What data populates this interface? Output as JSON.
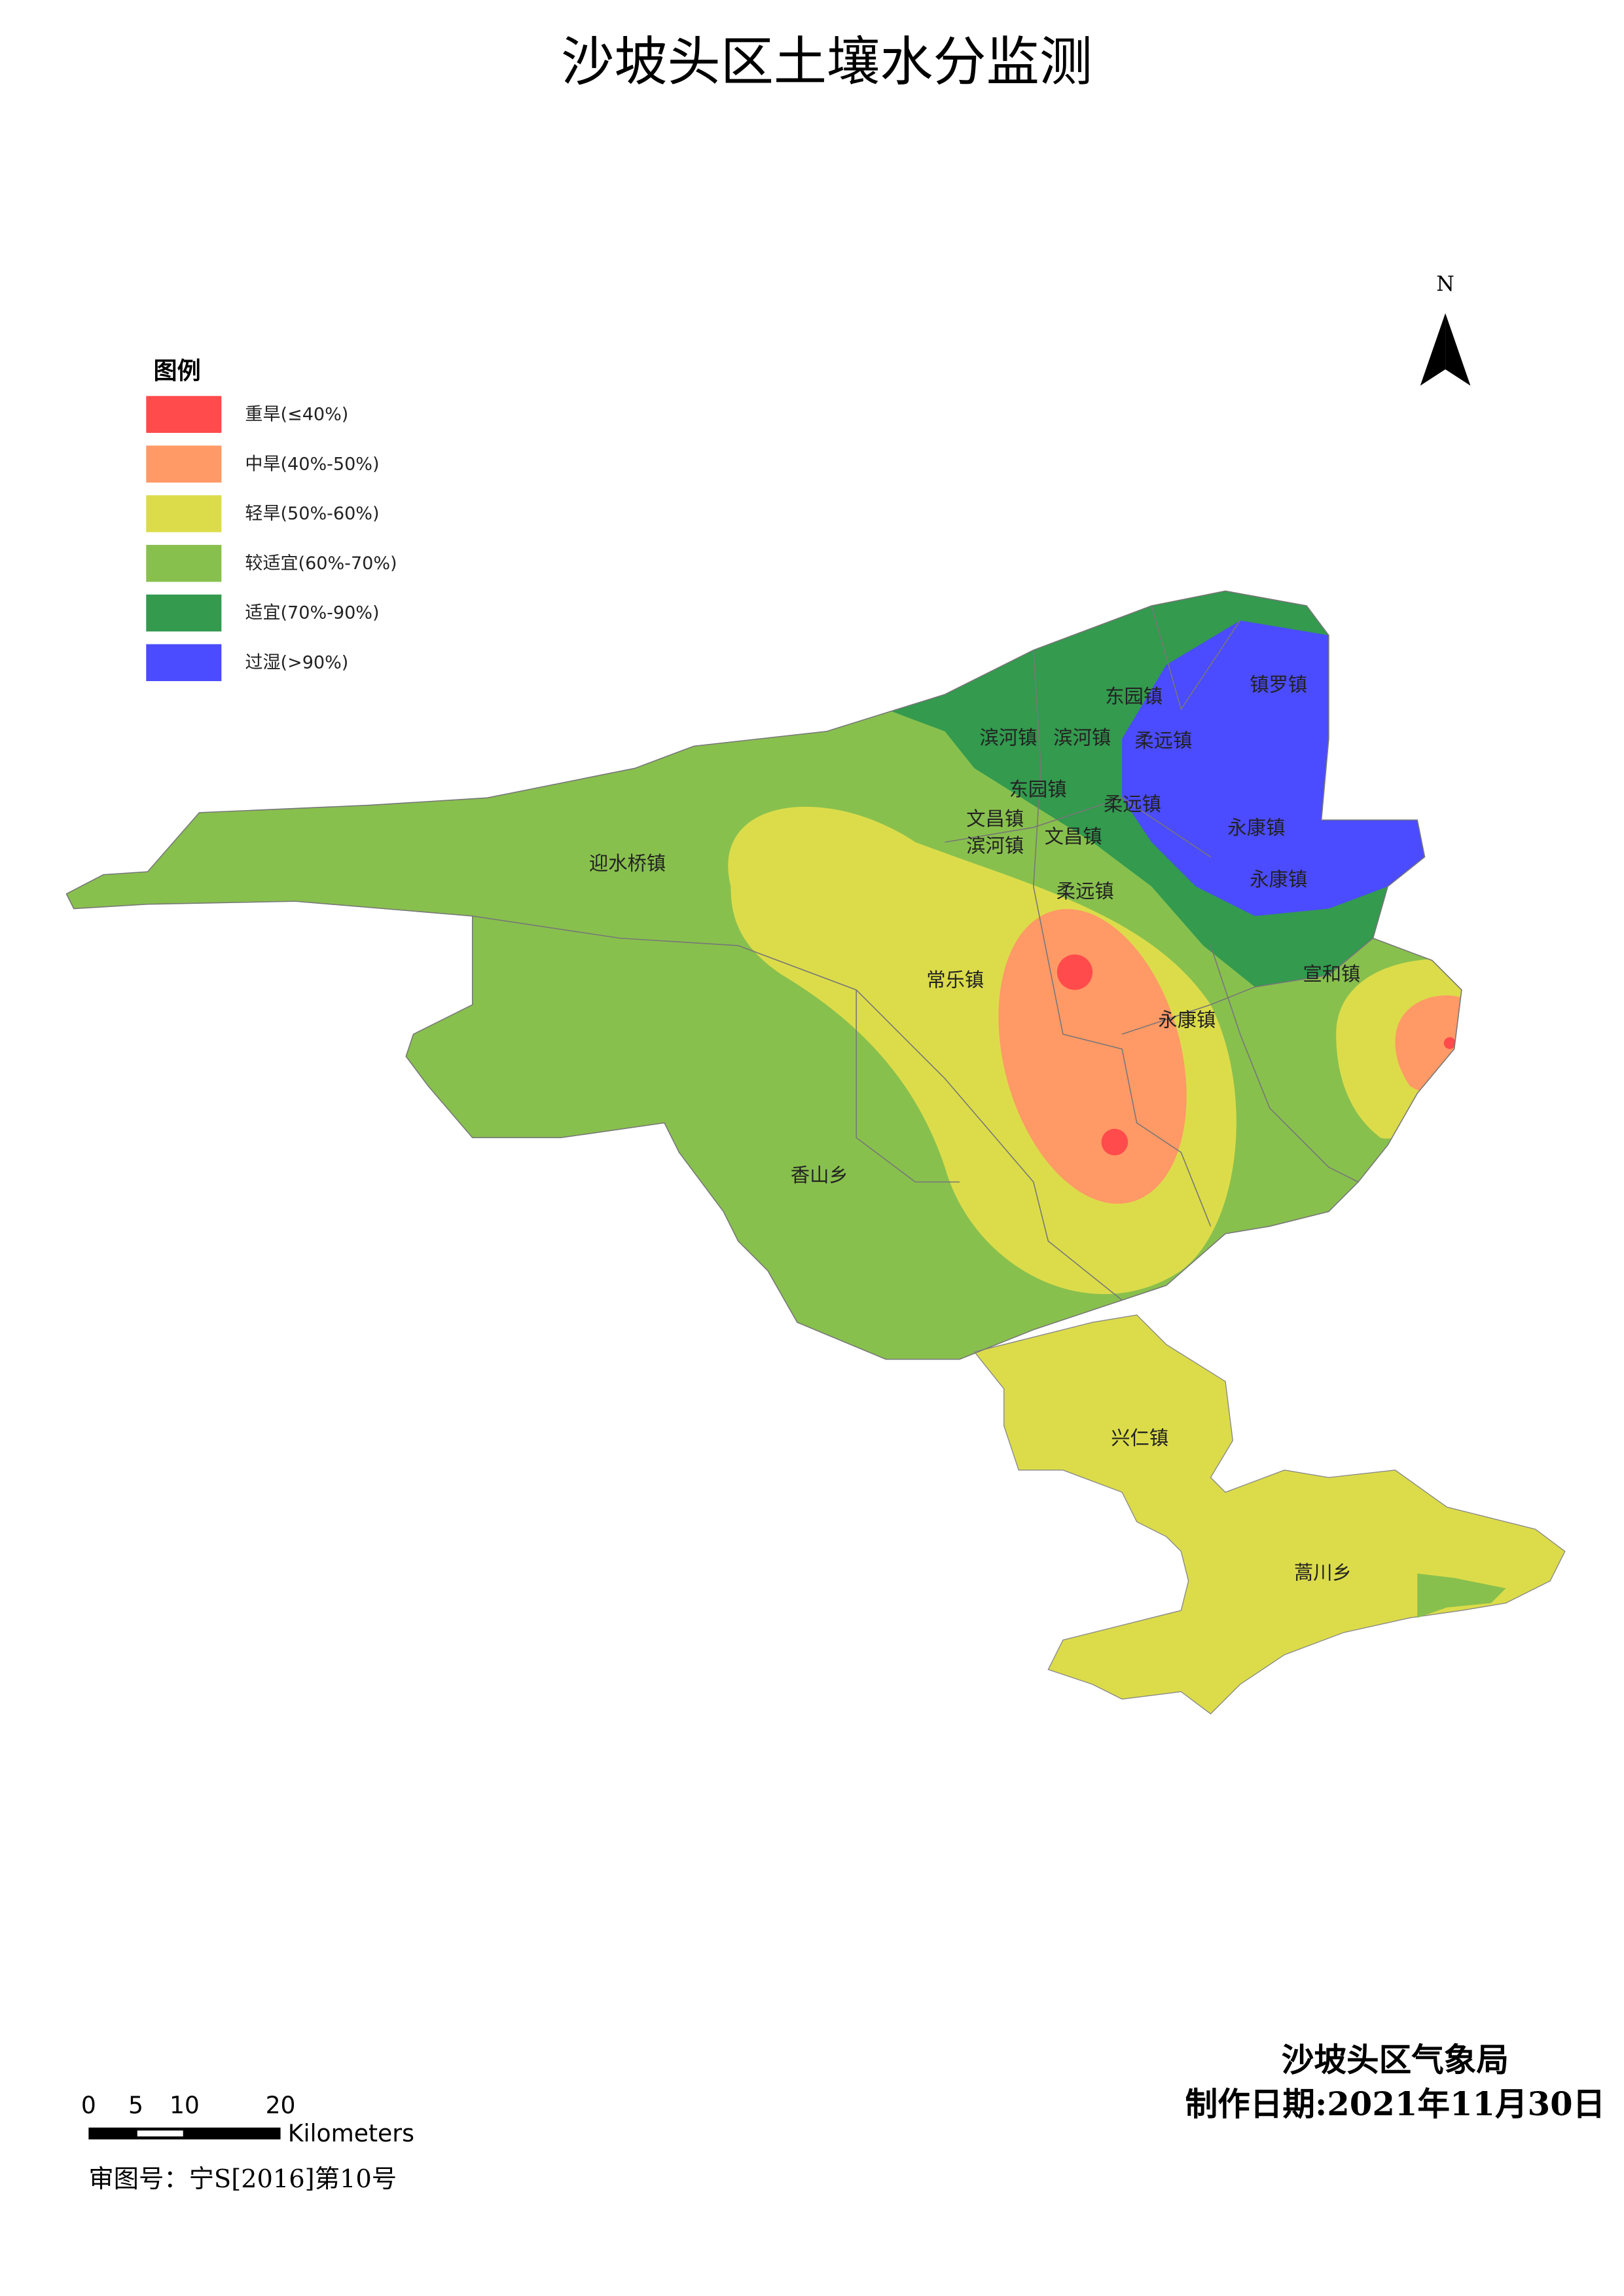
{
  "title": "沙坡头区土壤水分监测",
  "legend": {
    "title": "图例",
    "items": [
      {
        "label": "重旱(≤40%)",
        "color": "#ff4b4b"
      },
      {
        "label": "中旱(40%-50%)",
        "color": "#ff9966"
      },
      {
        "label": "轻旱(50%-60%)",
        "color": "#dcdc4a"
      },
      {
        "label": "较适宜(60%-70%)",
        "color": "#88c04e"
      },
      {
        "label": "适宜(70%-90%)",
        "color": "#339a4e"
      },
      {
        "label": "过湿(>90%)",
        "color": "#4b4bff"
      }
    ]
  },
  "north": "N",
  "places": [
    "东园镇",
    "镇罗镇",
    "滨河镇",
    "滨河镇",
    "柔远镇",
    "东园镇",
    "柔远镇",
    "文昌镇",
    "滨河镇",
    "文昌镇",
    "永康镇",
    "迎水桥镇",
    "永康镇",
    "柔远镇",
    "常乐镇",
    "宣和镇",
    "永康镇",
    "香山乡",
    "兴仁镇",
    "蒿川乡"
  ],
  "scalebar": {
    "ticks": [
      "0",
      "5",
      "10",
      "20"
    ],
    "unit": "Kilometers"
  },
  "approval": "审图号：宁S[2016]第10号",
  "agency": "沙坡头区气象局",
  "date": "制作日期:2021年11月30日"
}
